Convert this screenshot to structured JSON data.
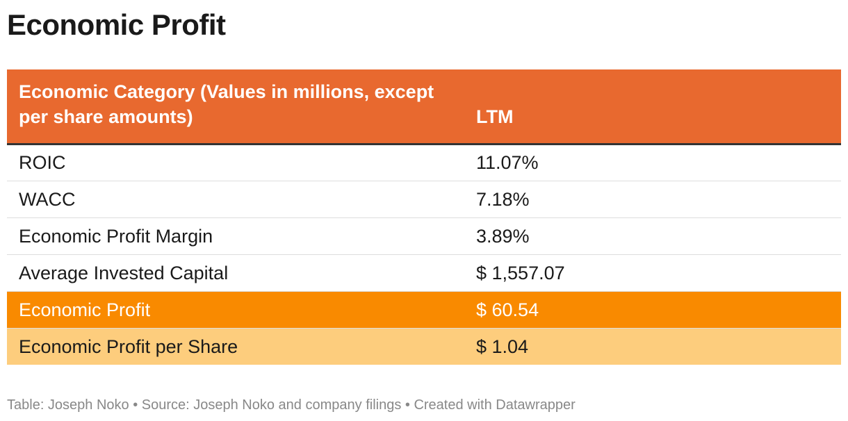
{
  "title": "Economic Profit",
  "colors": {
    "header_bg": "#e8692f",
    "highlight_bg": "#f98a00",
    "highlight_text": "#ffffff",
    "subhighlight_bg": "#fdcd7d",
    "row_text": "#1a1a1a"
  },
  "chart_data": {
    "type": "table",
    "columns": [
      "Economic Category (Values in millions, except per share amounts)",
      "LTM"
    ],
    "rows": [
      {
        "category": "ROIC",
        "ltm": "11.07%",
        "style": "normal"
      },
      {
        "category": "WACC",
        "ltm": "7.18%",
        "style": "normal"
      },
      {
        "category": "Economic Profit Margin",
        "ltm": "3.89%",
        "style": "normal"
      },
      {
        "category": "Average Invested Capital",
        "ltm": "$ 1,557.07",
        "style": "normal"
      },
      {
        "category": "Economic Profit",
        "ltm": "$ 60.54",
        "style": "highlight"
      },
      {
        "category": "Economic Profit per Share",
        "ltm": "$ 1.04",
        "style": "subhighlight"
      }
    ]
  },
  "footer": "Table: Joseph Noko • Source: Joseph Noko and company filings • Created with Datawrapper"
}
